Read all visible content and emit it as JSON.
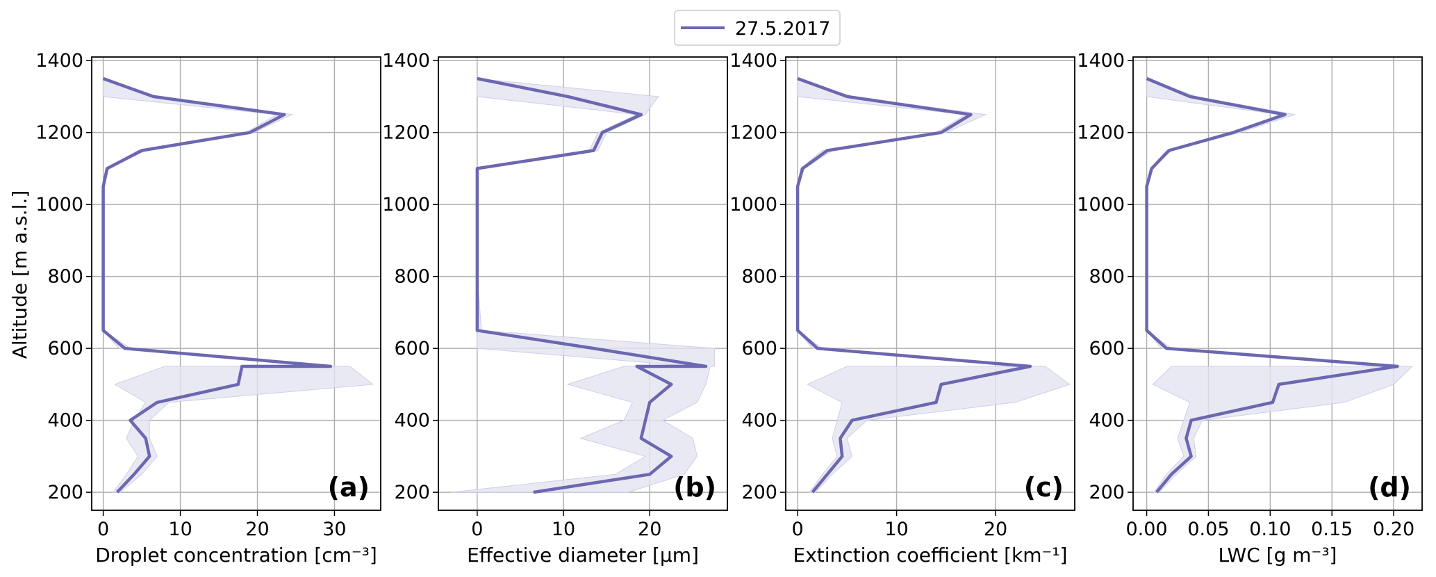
{
  "legend": {
    "label": "27.5.2017",
    "line_color": "#6b67b0"
  },
  "y_axis": {
    "label": "Altitude [m a.s.l.]",
    "ticks": [
      "200",
      "400",
      "600",
      "800",
      "1000",
      "1200",
      "1400"
    ]
  },
  "colors": {
    "line": "#6b67b0",
    "band": "#e3e3f1",
    "grid": "#b0b0b0"
  },
  "chart_data": [
    {
      "type": "line",
      "panel_label": "(a)",
      "xlabel": "Droplet concentration [cm⁻³]",
      "xlim": [
        -1.5,
        36
      ],
      "ylim": [
        150,
        1410
      ],
      "xticks": [
        0,
        10,
        20,
        30
      ],
      "xtick_labels": [
        "0",
        "10",
        "20",
        "30"
      ],
      "yticks": [
        200,
        400,
        600,
        800,
        1000,
        1200,
        1400
      ],
      "grid": true,
      "series": [
        {
          "name": "27.5.2017",
          "x": [
            1.8,
            4.0,
            6.0,
            5.5,
            3.5,
            7.0,
            17.5,
            18.0,
            29.5,
            2.8,
            0.0,
            0.0,
            0.0,
            0.5,
            5.0,
            19.0,
            23.5,
            6.5,
            0.0
          ],
          "y": [
            200,
            250,
            300,
            350,
            400,
            450,
            500,
            550,
            550,
            600,
            650,
            800,
            1050,
            1100,
            1150,
            1200,
            1250,
            1300,
            1350
          ]
        }
      ],
      "band": {
        "y": [
          200,
          250,
          300,
          350,
          400,
          450,
          500,
          550,
          550,
          600,
          650,
          800,
          1050,
          1100,
          1150,
          1200,
          1250,
          1300,
          1350
        ],
        "lower": [
          1.3,
          3.0,
          4.5,
          3.0,
          4.0,
          5.5,
          1.5,
          8.0,
          29.0,
          2.0,
          0.0,
          0.0,
          0.0,
          0.3,
          4.5,
          18.5,
          22.5,
          0.0,
          0.0
        ],
        "upper": [
          2.2,
          5.0,
          7.0,
          6.0,
          6.0,
          8.5,
          35.0,
          32.0,
          30.0,
          3.5,
          0.0,
          0.0,
          0.0,
          0.7,
          5.5,
          19.5,
          24.5,
          7.0,
          0.0
        ]
      }
    },
    {
      "type": "line",
      "panel_label": "(b)",
      "xlabel": "Effective diameter [μm]",
      "xlim": [
        -4.5,
        29
      ],
      "ylim": [
        150,
        1410
      ],
      "xticks": [
        0,
        10,
        20
      ],
      "xtick_labels": [
        "0",
        "10",
        "20"
      ],
      "yticks": [
        200,
        400,
        600,
        800,
        1000,
        1200,
        1400
      ],
      "grid": true,
      "series": [
        {
          "name": "27.5.2017",
          "x": [
            6.5,
            20.0,
            22.5,
            19.0,
            19.5,
            20.0,
            22.5,
            18.5,
            26.5,
            13.5,
            0.0,
            0.0,
            0.0,
            0.0,
            13.5,
            14.5,
            19.0,
            10.5,
            0.0
          ],
          "y": [
            200,
            250,
            300,
            350,
            400,
            450,
            500,
            550,
            550,
            600,
            650,
            800,
            1050,
            1100,
            1150,
            1200,
            1250,
            1300,
            1350
          ]
        }
      ],
      "band": {
        "y": [
          200,
          250,
          300,
          350,
          400,
          450,
          500,
          550,
          550,
          600,
          650,
          800,
          1050,
          1100,
          1150,
          1200,
          1250,
          1300,
          1350
        ],
        "lower": [
          -3.0,
          16.0,
          19.5,
          12.0,
          17.0,
          18.0,
          10.5,
          17.0,
          25.0,
          0.0,
          0.0,
          0.0,
          0.0,
          0.0,
          13.0,
          14.0,
          18.5,
          0.0,
          0.0
        ],
        "upper": [
          17.5,
          24.0,
          25.5,
          25.0,
          21.5,
          25.5,
          26.5,
          27.0,
          27.5,
          27.5,
          0.5,
          0.0,
          0.0,
          0.0,
          14.0,
          15.0,
          19.5,
          21.0,
          0.0
        ]
      }
    },
    {
      "type": "line",
      "panel_label": "(c)",
      "xlabel": "Extinction coefficient [km⁻¹]",
      "xlim": [
        -1.2,
        28
      ],
      "ylim": [
        150,
        1410
      ],
      "xticks": [
        0,
        10,
        20
      ],
      "xtick_labels": [
        "0",
        "10",
        "20"
      ],
      "yticks": [
        200,
        400,
        600,
        800,
        1000,
        1200,
        1400
      ],
      "grid": true,
      "series": [
        {
          "name": "27.5.2017",
          "x": [
            1.5,
            3.0,
            4.5,
            4.3,
            5.5,
            14.0,
            14.5,
            23.5,
            23.5,
            2.0,
            0.0,
            0.0,
            0.0,
            0.5,
            3.0,
            14.5,
            17.5,
            5.0,
            0.0
          ],
          "y": [
            200,
            250,
            300,
            350,
            400,
            450,
            500,
            550,
            550,
            600,
            650,
            800,
            1050,
            1100,
            1150,
            1200,
            1250,
            1300,
            1350
          ]
        }
      ],
      "band": {
        "y": [
          200,
          250,
          300,
          350,
          400,
          450,
          500,
          550,
          550,
          600,
          650,
          800,
          1050,
          1100,
          1150,
          1200,
          1250,
          1300,
          1350
        ],
        "lower": [
          1.2,
          2.5,
          4.0,
          3.5,
          4.0,
          4.5,
          1.0,
          5.0,
          23.0,
          1.5,
          0.0,
          0.0,
          0.0,
          0.3,
          2.5,
          14.0,
          17.0,
          0.0,
          0.0
        ],
        "upper": [
          1.8,
          3.5,
          5.5,
          5.0,
          7.0,
          22.0,
          27.5,
          25.0,
          24.0,
          2.5,
          0.0,
          0.0,
          0.0,
          0.7,
          3.5,
          15.0,
          19.0,
          5.5,
          0.0
        ]
      }
    },
    {
      "type": "line",
      "panel_label": "(d)",
      "xlabel": "LWC [g m⁻³]",
      "xlim": [
        -0.011,
        0.223
      ],
      "ylim": [
        150,
        1410
      ],
      "xticks": [
        0.0,
        0.05,
        0.1,
        0.15,
        0.2
      ],
      "xtick_labels": [
        "0.00",
        "0.05",
        "0.10",
        "0.15",
        "0.20"
      ],
      "yticks": [
        200,
        400,
        600,
        800,
        1000,
        1200,
        1400
      ],
      "grid": true,
      "series": [
        {
          "name": "27.5.2017",
          "x": [
            0.008,
            0.02,
            0.036,
            0.032,
            0.036,
            0.102,
            0.107,
            0.203,
            0.203,
            0.016,
            0.0,
            0.0,
            0.0,
            0.004,
            0.018,
            0.07,
            0.112,
            0.035,
            0.0
          ],
          "y": [
            200,
            250,
            300,
            350,
            400,
            450,
            500,
            550,
            550,
            600,
            650,
            800,
            1050,
            1100,
            1150,
            1200,
            1250,
            1300,
            1350
          ]
        }
      ],
      "band": {
        "y": [
          200,
          250,
          300,
          350,
          400,
          450,
          500,
          550,
          550,
          600,
          650,
          800,
          1050,
          1100,
          1150,
          1200,
          1250,
          1300,
          1350
        ],
        "lower": [
          0.006,
          0.016,
          0.03,
          0.025,
          0.03,
          0.035,
          0.005,
          0.02,
          0.202,
          0.012,
          0.0,
          0.0,
          0.0,
          0.003,
          0.016,
          0.068,
          0.108,
          0.0,
          0.0
        ],
        "upper": [
          0.01,
          0.024,
          0.04,
          0.038,
          0.045,
          0.16,
          0.2,
          0.215,
          0.21,
          0.02,
          0.0,
          0.0,
          0.0,
          0.005,
          0.02,
          0.075,
          0.12,
          0.04,
          0.0
        ]
      }
    }
  ]
}
